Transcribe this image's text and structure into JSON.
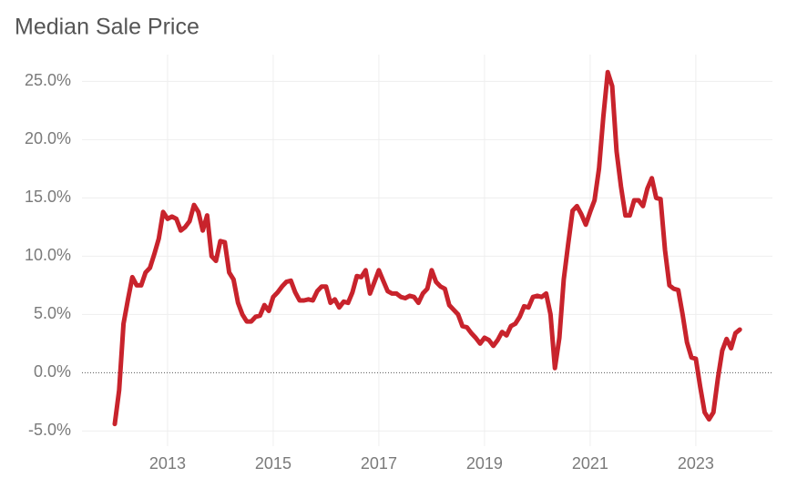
{
  "chart_data": {
    "type": "line",
    "title": "Median Sale Price",
    "x": [
      2012,
      2012.083,
      2012.167,
      2012.25,
      2012.333,
      2012.417,
      2012.5,
      2012.583,
      2012.667,
      2012.75,
      2012.833,
      2012.917,
      2013,
      2013.083,
      2013.167,
      2013.25,
      2013.333,
      2013.417,
      2013.5,
      2013.583,
      2013.667,
      2013.75,
      2013.833,
      2013.917,
      2014,
      2014.083,
      2014.167,
      2014.25,
      2014.333,
      2014.417,
      2014.5,
      2014.583,
      2014.667,
      2014.75,
      2014.833,
      2014.917,
      2015,
      2015.083,
      2015.167,
      2015.25,
      2015.333,
      2015.417,
      2015.5,
      2015.583,
      2015.667,
      2015.75,
      2015.833,
      2015.917,
      2016,
      2016.083,
      2016.167,
      2016.25,
      2016.333,
      2016.417,
      2016.5,
      2016.583,
      2016.667,
      2016.75,
      2016.833,
      2016.917,
      2017,
      2017.083,
      2017.167,
      2017.25,
      2017.333,
      2017.417,
      2017.5,
      2017.583,
      2017.667,
      2017.75,
      2017.833,
      2017.917,
      2018,
      2018.083,
      2018.167,
      2018.25,
      2018.333,
      2018.417,
      2018.5,
      2018.583,
      2018.667,
      2018.75,
      2018.833,
      2018.917,
      2019,
      2019.083,
      2019.167,
      2019.25,
      2019.333,
      2019.417,
      2019.5,
      2019.583,
      2019.667,
      2019.75,
      2019.833,
      2019.917,
      2020,
      2020.083,
      2020.167,
      2020.25,
      2020.333,
      2020.417,
      2020.5,
      2020.583,
      2020.667,
      2020.75,
      2020.833,
      2020.917,
      2021,
      2021.083,
      2021.167,
      2021.25,
      2021.333,
      2021.417,
      2021.5,
      2021.583,
      2021.667,
      2021.75,
      2021.833,
      2021.917,
      2022,
      2022.083,
      2022.167,
      2022.25,
      2022.333,
      2022.417,
      2022.5,
      2022.583,
      2022.667,
      2022.75,
      2022.833,
      2022.917,
      2023,
      2023.083,
      2023.167,
      2023.25,
      2023.333,
      2023.417,
      2023.5,
      2023.583,
      2023.667,
      2023.75,
      2023.833
    ],
    "series": [
      {
        "name": "Median Sale Price",
        "color": "#c8232c",
        "values": [
          -4.4,
          -1.5,
          4.2,
          6.3,
          8.2,
          7.5,
          7.5,
          8.6,
          9.0,
          10.2,
          11.5,
          13.8,
          13.2,
          13.4,
          13.2,
          12.2,
          12.5,
          13.0,
          14.4,
          13.8,
          12.2,
          13.5,
          10.0,
          9.6,
          11.3,
          11.2,
          8.6,
          8.0,
          6.0,
          5.0,
          4.4,
          4.4,
          4.8,
          4.9,
          5.8,
          5.3,
          6.5,
          6.9,
          7.4,
          7.8,
          7.9,
          6.9,
          6.2,
          6.2,
          6.3,
          6.2,
          7.0,
          7.4,
          7.4,
          6.0,
          6.3,
          5.6,
          6.1,
          6.0,
          6.9,
          8.3,
          8.2,
          8.8,
          6.8,
          7.8,
          8.8,
          7.9,
          7.0,
          6.8,
          6.8,
          6.5,
          6.4,
          6.6,
          6.5,
          6.0,
          6.8,
          7.2,
          8.8,
          7.8,
          7.4,
          7.2,
          5.8,
          5.4,
          5.0,
          4.0,
          3.9,
          3.4,
          3.0,
          2.5,
          3.0,
          2.8,
          2.3,
          2.8,
          3.5,
          3.2,
          4.0,
          4.2,
          4.8,
          5.7,
          5.6,
          6.5,
          6.6,
          6.5,
          6.8,
          5.0,
          0.4,
          3.0,
          8.0,
          11.0,
          13.9,
          14.3,
          13.6,
          12.7,
          13.8,
          14.8,
          17.5,
          22.0,
          25.8,
          24.6,
          19.0,
          16.0,
          13.5,
          13.5,
          14.8,
          14.8,
          14.3,
          15.8,
          16.7,
          15.0,
          14.9,
          10.5,
          7.5,
          7.2,
          7.1,
          5.0,
          2.6,
          1.3,
          1.2,
          -1.2,
          -3.4,
          -4.0,
          -3.4,
          -0.5,
          1.9,
          2.9,
          2.1,
          3.4,
          3.7
        ]
      }
    ],
    "xlim": [
      2011.38,
      2024.45
    ],
    "xticks": [
      2013,
      2015,
      2017,
      2019,
      2021,
      2023
    ],
    "ylim": [
      -6.3,
      27.3
    ],
    "yticks": [
      {
        "value": -5,
        "label": "-5.0%"
      },
      {
        "value": 0,
        "label": "0.0%"
      },
      {
        "value": 5,
        "label": "5.0%"
      },
      {
        "value": 10,
        "label": "10.0%"
      },
      {
        "value": 15,
        "label": "15.0%"
      },
      {
        "value": 20,
        "label": "20.0%"
      },
      {
        "value": 25,
        "label": "25.0%"
      }
    ],
    "grid": true
  }
}
